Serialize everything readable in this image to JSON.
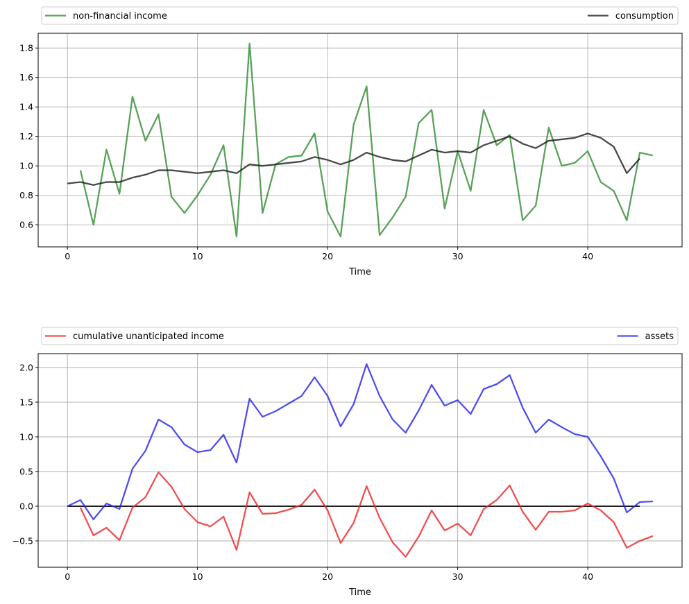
{
  "chart_data": [
    {
      "type": "line",
      "title": "",
      "xlabel": "Time",
      "ylabel": "",
      "xlim": [
        -2.25,
        47.25
      ],
      "ylim": [
        0.45,
        1.9
      ],
      "xticks": [
        0,
        10,
        20,
        30,
        40
      ],
      "yticks": [
        0.6,
        0.8,
        1.0,
        1.2,
        1.4,
        1.6,
        1.8
      ],
      "xtick_labels": [
        "0",
        "10",
        "20",
        "30",
        "40"
      ],
      "ytick_labels": [
        "0.6",
        "0.8",
        "1.0",
        "1.2",
        "1.4",
        "1.6",
        "1.8"
      ],
      "grid": true,
      "legend_placement": "above plot, spread across full width",
      "series": [
        {
          "name": "non-financial income",
          "color": "#2e8b2e",
          "x_start": 1,
          "values": [
            0.97,
            0.6,
            1.11,
            0.81,
            1.47,
            1.17,
            1.35,
            0.79,
            0.68,
            0.8,
            0.94,
            1.14,
            0.52,
            1.83,
            0.68,
            1.01,
            1.06,
            1.07,
            1.22,
            0.69,
            0.52,
            1.28,
            1.54,
            0.53,
            0.65,
            0.79,
            1.29,
            1.38,
            0.71,
            1.1,
            0.83,
            1.38,
            1.14,
            1.21,
            0.63,
            0.73,
            1.26,
            1.0,
            1.02,
            1.1,
            0.89,
            0.83,
            0.63,
            1.09,
            1.07
          ]
        },
        {
          "name": "consumption",
          "color": "#1a1a1a",
          "x_start": 0,
          "values": [
            0.88,
            0.89,
            0.87,
            0.89,
            0.89,
            0.92,
            0.94,
            0.97,
            0.97,
            0.96,
            0.95,
            0.96,
            0.97,
            0.95,
            1.01,
            1.0,
            1.01,
            1.02,
            1.03,
            1.06,
            1.04,
            1.01,
            1.04,
            1.09,
            1.06,
            1.04,
            1.03,
            1.07,
            1.11,
            1.09,
            1.1,
            1.09,
            1.14,
            1.17,
            1.2,
            1.15,
            1.12,
            1.17,
            1.18,
            1.19,
            1.22,
            1.19,
            1.13,
            0.95,
            1.05
          ]
        }
      ]
    },
    {
      "type": "line",
      "title": "",
      "xlabel": "Time",
      "ylabel": "",
      "xlim": [
        -2.25,
        47.25
      ],
      "ylim": [
        -0.88,
        2.2
      ],
      "xticks": [
        0,
        10,
        20,
        30,
        40
      ],
      "yticks": [
        -0.5,
        0.0,
        0.5,
        1.0,
        1.5,
        2.0
      ],
      "xtick_labels": [
        "0",
        "10",
        "20",
        "30",
        "40"
      ],
      "ytick_labels": [
        "−0.5",
        "0.0",
        "0.5",
        "1.0",
        "1.5",
        "2.0"
      ],
      "grid": true,
      "legend_placement": "above plot, spread across full width",
      "zero_line": {
        "y": 0,
        "x_from": 0,
        "x_to": 44,
        "color": "#000000"
      },
      "series": [
        {
          "name": "cumulative unanticipated income",
          "color": "#ee2222",
          "x_start": 1,
          "values": [
            -0.02,
            -0.42,
            -0.31,
            -0.49,
            -0.02,
            0.13,
            0.49,
            0.28,
            -0.04,
            -0.23,
            -0.29,
            -0.15,
            -0.63,
            0.2,
            -0.11,
            -0.1,
            -0.05,
            0.02,
            0.24,
            -0.06,
            -0.53,
            -0.24,
            0.29,
            -0.17,
            -0.52,
            -0.73,
            -0.44,
            -0.06,
            -0.35,
            -0.25,
            -0.42,
            -0.04,
            0.09,
            0.3,
            -0.08,
            -0.34,
            -0.08,
            -0.08,
            -0.06,
            0.04,
            -0.06,
            -0.23,
            -0.6,
            -0.5,
            -0.43
          ]
        },
        {
          "name": "assets",
          "color": "#2222ee",
          "x_start": 0,
          "values": [
            0.0,
            0.09,
            -0.19,
            0.04,
            -0.04,
            0.54,
            0.8,
            1.25,
            1.14,
            0.89,
            0.78,
            0.81,
            1.03,
            0.63,
            1.55,
            1.29,
            1.37,
            1.48,
            1.59,
            1.86,
            1.59,
            1.15,
            1.47,
            2.05,
            1.59,
            1.25,
            1.06,
            1.38,
            1.75,
            1.45,
            1.53,
            1.33,
            1.69,
            1.76,
            1.89,
            1.42,
            1.06,
            1.25,
            1.14,
            1.04,
            1.0,
            0.72,
            0.4,
            -0.09,
            0.06,
            0.07
          ]
        }
      ]
    }
  ]
}
